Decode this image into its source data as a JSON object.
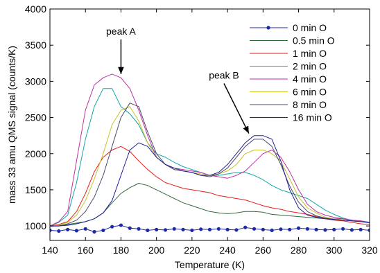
{
  "chart_data": {
    "type": "line",
    "xlabel": "Temperature (K)",
    "ylabel": "mass 33 amu QMS signal (counts/K)",
    "xlim": [
      140,
      320
    ],
    "ylim": [
      800,
      4000
    ],
    "xticks": [
      140,
      160,
      180,
      200,
      220,
      240,
      260,
      280,
      300,
      320
    ],
    "yticks": [
      1000,
      1500,
      2000,
      2500,
      3000,
      3500,
      4000
    ],
    "x": [
      140,
      145,
      150,
      155,
      160,
      165,
      170,
      175,
      180,
      185,
      190,
      195,
      200,
      205,
      210,
      215,
      220,
      225,
      230,
      235,
      240,
      245,
      250,
      255,
      260,
      265,
      270,
      275,
      280,
      285,
      290,
      295,
      300,
      305,
      310,
      315,
      320
    ],
    "series": [
      {
        "name": "0 min O",
        "color": "#1f2aa8",
        "marker": "dot",
        "values": [
          940,
          930,
          950,
          935,
          960,
          920,
          940,
          990,
          1010,
          970,
          960,
          940,
          950,
          945,
          960,
          950,
          940,
          955,
          950,
          960,
          950,
          945,
          980,
          960,
          950,
          940,
          955,
          950,
          970,
          960,
          950,
          945,
          950,
          960,
          945,
          950,
          940
        ]
      },
      {
        "name": "0.5 min O",
        "color": "#2e6b3a",
        "values": [
          1000,
          1000,
          1020,
          1040,
          1060,
          1100,
          1180,
          1320,
          1450,
          1530,
          1590,
          1560,
          1500,
          1440,
          1380,
          1320,
          1280,
          1240,
          1200,
          1180,
          1170,
          1180,
          1200,
          1200,
          1190,
          1160,
          1150,
          1140,
          1130,
          1120,
          1110,
          1100,
          1100,
          1100,
          1080,
          1070,
          1050
        ]
      },
      {
        "name": "1 min O",
        "color": "#e41b1b",
        "values": [
          1000,
          1020,
          1060,
          1200,
          1450,
          1750,
          1950,
          2050,
          2100,
          2030,
          1900,
          1780,
          1680,
          1600,
          1560,
          1520,
          1500,
          1480,
          1460,
          1420,
          1400,
          1380,
          1360,
          1320,
          1280,
          1250,
          1230,
          1200,
          1180,
          1160,
          1130,
          1100,
          1080,
          1070,
          1050,
          1030,
          1020
        ]
      },
      {
        "name": "2 min O",
        "color": "#12a6a6",
        "values": [
          1000,
          1050,
          1150,
          1600,
          2200,
          2650,
          2900,
          2900,
          2650,
          2550,
          2400,
          2150,
          2000,
          1950,
          1880,
          1820,
          1780,
          1740,
          1700,
          1700,
          1720,
          1740,
          1740,
          1700,
          1640,
          1560,
          1500,
          1460,
          1420,
          1380,
          1300,
          1220,
          1160,
          1110,
          1080,
          1060,
          1040
        ]
      },
      {
        "name": "4 min O",
        "color": "#bf2fa4",
        "values": [
          1000,
          1060,
          1200,
          1900,
          2600,
          2950,
          3050,
          3100,
          3050,
          2900,
          2600,
          2250,
          1950,
          1850,
          1800,
          1780,
          1760,
          1740,
          1700,
          1680,
          1660,
          1700,
          1760,
          1880,
          2000,
          2050,
          1950,
          1750,
          1500,
          1300,
          1200,
          1150,
          1120,
          1100,
          1080,
          1070,
          1050
        ]
      },
      {
        "name": "6 min O",
        "color": "#c9c12a",
        "values": [
          1000,
          1010,
          1050,
          1150,
          1350,
          1650,
          2000,
          2400,
          2600,
          2650,
          2450,
          2150,
          1950,
          1850,
          1780,
          1760,
          1740,
          1720,
          1700,
          1720,
          1760,
          1850,
          2000,
          2050,
          2050,
          2000,
          1900,
          1650,
          1400,
          1250,
          1180,
          1120,
          1100,
          1080,
          1070,
          1060,
          1050
        ]
      },
      {
        "name": "8 min O",
        "color": "#4a4a6a",
        "values": [
          1000,
          1000,
          1030,
          1080,
          1200,
          1400,
          1700,
          2100,
          2500,
          2700,
          2650,
          2300,
          2000,
          1850,
          1780,
          1760,
          1740,
          1700,
          1680,
          1720,
          1800,
          1950,
          2100,
          2200,
          2200,
          2100,
          1850,
          1550,
          1330,
          1200,
          1140,
          1110,
          1090,
          1080,
          1070,
          1060,
          1050
        ]
      },
      {
        "name": "16 min O",
        "color": "#20209a",
        "values": [
          1000,
          1000,
          1010,
          1030,
          1060,
          1100,
          1180,
          1350,
          1700,
          2050,
          2150,
          2100,
          1950,
          1850,
          1800,
          1760,
          1740,
          1700,
          1700,
          1740,
          1850,
          2000,
          2150,
          2250,
          2250,
          2200,
          1900,
          1500,
          1250,
          1150,
          1120,
          1100,
          1090,
          1080,
          1070,
          1060,
          1050
        ]
      }
    ],
    "annotations": [
      {
        "text": "peak A",
        "arrow_from": [
          180,
          3580
        ],
        "arrow_to": [
          180,
          3100
        ]
      },
      {
        "text": "peak B",
        "arrow_from": [
          238,
          2970
        ],
        "arrow_to": [
          252,
          2280
        ]
      }
    ],
    "legend_position": "top-right",
    "grid": false
  }
}
